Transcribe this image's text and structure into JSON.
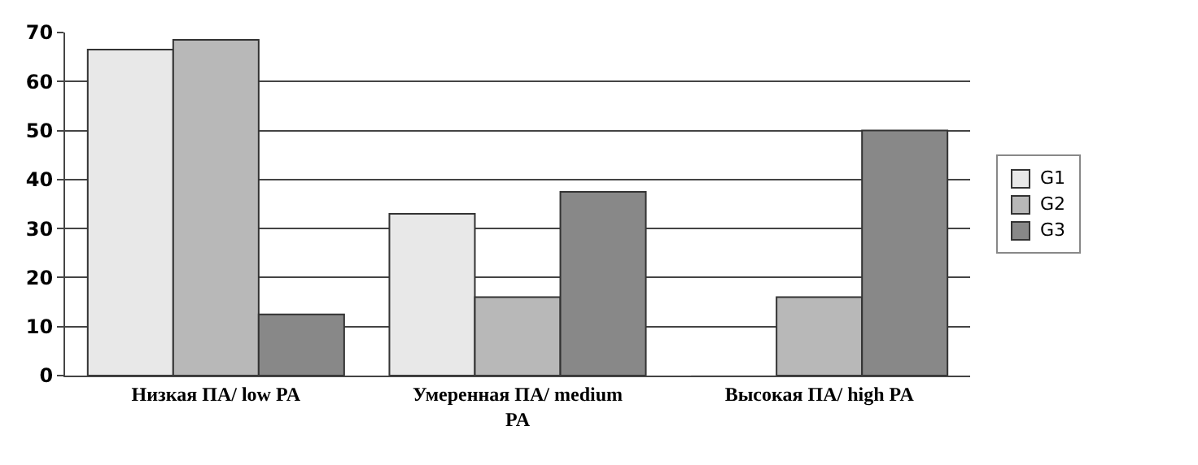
{
  "chart_data": {
    "type": "bar",
    "categories": [
      "Низкая ПА/ low PA",
      "Умеренная ПА/ medium PA",
      "Высокая ПА/ high PA"
    ],
    "series": [
      {
        "name": "G1",
        "color": "#e8e8e8",
        "values": [
          66.5,
          33,
          0
        ]
      },
      {
        "name": "G2",
        "color": "#b8b8b8",
        "values": [
          68.5,
          16,
          16
        ]
      },
      {
        "name": "G3",
        "color": "#888888",
        "values": [
          12.5,
          37.5,
          50
        ]
      }
    ],
    "ylim": [
      0,
      70
    ],
    "yticks": [
      0,
      10,
      20,
      30,
      40,
      50,
      60,
      70
    ],
    "grid": "y",
    "legend": "right"
  }
}
